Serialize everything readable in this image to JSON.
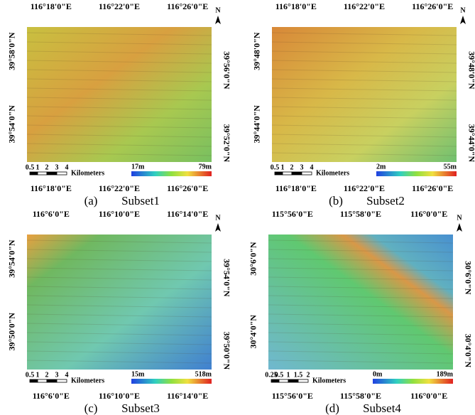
{
  "panels": [
    {
      "letter": "(a)",
      "caption": "Subset1",
      "north": "N",
      "top_ticks": [
        "116°18'0\"E",
        "116°22'0\"E",
        "116°26'0\"E"
      ],
      "bottom_ticks": [
        "116°18'0\"E",
        "116°22'0\"E",
        "116°26'0\"E"
      ],
      "left_ticks": [
        "39°58'0\"N",
        "39°54'0\"N"
      ],
      "right_ticks": [
        "39°56'0\"N",
        "39°52'0\"N"
      ],
      "scale_labels": [
        "0.5",
        "1",
        "2",
        "3",
        "4"
      ],
      "scale_unit": "Kilometers",
      "legend_min": "17m",
      "legend_max": "79m"
    },
    {
      "letter": "(b)",
      "caption": "Subset2",
      "north": "N",
      "top_ticks": [
        "116°18'0\"E",
        "116°22'0\"E",
        "116°26'0\"E"
      ],
      "bottom_ticks": [
        "116°18'0\"E",
        "116°22'0\"E",
        "116°26'0\"E"
      ],
      "left_ticks": [
        "39°48'0\"N",
        "39°44'0\"N"
      ],
      "right_ticks": [
        "39°48'0\"N",
        "39°44'0\"N"
      ],
      "scale_labels": [
        "0.5",
        "1",
        "2",
        "3",
        "4"
      ],
      "scale_unit": "Kilometers",
      "legend_min": "2m",
      "legend_max": "55m"
    },
    {
      "letter": "(c)",
      "caption": "Subset3",
      "north": "N",
      "top_ticks": [
        "116°6'0\"E",
        "116°10'0\"E",
        "116°14'0\"E"
      ],
      "bottom_ticks": [
        "116°6'0\"E",
        "116°10'0\"E",
        "116°14'0\"E"
      ],
      "left_ticks": [
        "39°54'0\"N",
        "39°50'0\"N"
      ],
      "right_ticks": [
        "39°54'0\"N",
        "39°50'0\"N"
      ],
      "scale_labels": [
        "0.5",
        "1",
        "2",
        "3",
        "4"
      ],
      "scale_unit": "Kilometers",
      "legend_min": "15m",
      "legend_max": "518m"
    },
    {
      "letter": "(d)",
      "caption": "Subset4",
      "north": "N",
      "top_ticks": [
        "115°56'0\"E",
        "115°58'0\"E",
        "116°0'0\"E"
      ],
      "bottom_ticks": [
        "115°56'0\"E",
        "115°58'0\"E",
        "116°0'0\"E"
      ],
      "left_ticks": [
        "30°6'0\"N",
        "30°4'0\"N"
      ],
      "right_ticks": [
        "30°6'0\"N",
        "30°4'0\"N"
      ],
      "scale_labels": [
        "0.25",
        "0.5",
        "1",
        "1.5",
        "2"
      ],
      "scale_unit": "Kilometers",
      "legend_min": "0m",
      "legend_max": "189m"
    }
  ]
}
